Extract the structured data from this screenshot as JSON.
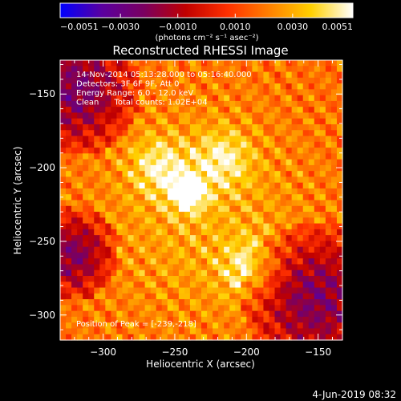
{
  "chart_data": {
    "type": "heatmap",
    "title": "Reconstructed RHESSI Image",
    "xlabel": "Heliocentric X (arcsec)",
    "ylabel": "Heliocentric Y (arcsec)",
    "xlim": [
      -330,
      -133
    ],
    "ylim": [
      -317,
      -127
    ],
    "x_ticks": [
      -300,
      -250,
      -200,
      -150
    ],
    "x_tick_labels": [
      "−300",
      "−250",
      "−200",
      "−150"
    ],
    "y_ticks": [
      -300,
      -250,
      -200,
      -150
    ],
    "y_tick_labels": [
      "−300",
      "−250",
      "−200",
      "−150"
    ],
    "colorbar": {
      "range": [
        -0.0051,
        0.0051
      ],
      "ticks": [
        -0.0051,
        -0.003,
        -0.001,
        0.001,
        0.003,
        0.0051
      ],
      "tick_labels": [
        "−0.0051",
        "−0.0030",
        "−0.0010",
        "0.0010",
        "0.0030",
        "0.0051"
      ],
      "label": "(photons cm⁻² s⁻¹ asec⁻²)",
      "stops": [
        "#0000ff",
        "#5a00a0",
        "#7a0060",
        "#c00000",
        "#ff3000",
        "#ff8000",
        "#ffd000",
        "#ffffff"
      ]
    },
    "info_lines": [
      "14-Nov-2014 05:13:28.000 to 05:16:40.000",
      "Detectors: 3F 6F 9F, Att 0",
      "Energy Range: 6.0 - 12.0 keV",
      "Clean      Total counts: 1.02E+04"
    ],
    "peak_label": "Position of Peak = [-239,-218]",
    "peak": [
      -239,
      -218
    ],
    "secondary_peaks": [
      [
        -195,
        -270
      ],
      [
        -215,
        -195
      ],
      [
        -260,
        -200
      ]
    ],
    "dim_regions": [
      {
        "center": [
          -318,
          -148
        ],
        "radius": 28
      },
      {
        "center": [
          -150,
          -290
        ],
        "radius": 32
      },
      {
        "center": [
          -320,
          -260
        ],
        "radius": 20
      }
    ],
    "grid": false
  },
  "footer": {
    "date": "4-Jun-2019 08:32"
  }
}
